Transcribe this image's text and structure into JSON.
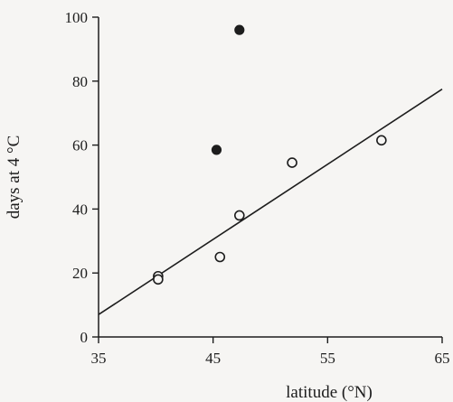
{
  "chart_data": {
    "type": "scatter",
    "title": "",
    "xlabel": "latitude (°N)",
    "ylabel": "days at 4 °C",
    "xlim": [
      35,
      65
    ],
    "ylim": [
      0,
      100
    ],
    "x_ticks": [
      35,
      45,
      55,
      65
    ],
    "y_ticks": [
      0,
      20,
      40,
      60,
      80,
      100
    ],
    "grid": false,
    "legend": "none",
    "series": [
      {
        "marker": "open-circle",
        "points": [
          {
            "x": 40.2,
            "y": 19
          },
          {
            "x": 40.2,
            "y": 18
          },
          {
            "x": 45.6,
            "y": 25
          },
          {
            "x": 47.3,
            "y": 38
          },
          {
            "x": 51.9,
            "y": 54.5
          },
          {
            "x": 59.7,
            "y": 61.5
          }
        ]
      },
      {
        "marker": "filled-circle",
        "points": [
          {
            "x": 45.3,
            "y": 58.5
          },
          {
            "x": 47.3,
            "y": 96
          }
        ]
      }
    ],
    "regression_line": {
      "x": [
        35,
        65
      ],
      "y": [
        7,
        77.5
      ]
    }
  }
}
